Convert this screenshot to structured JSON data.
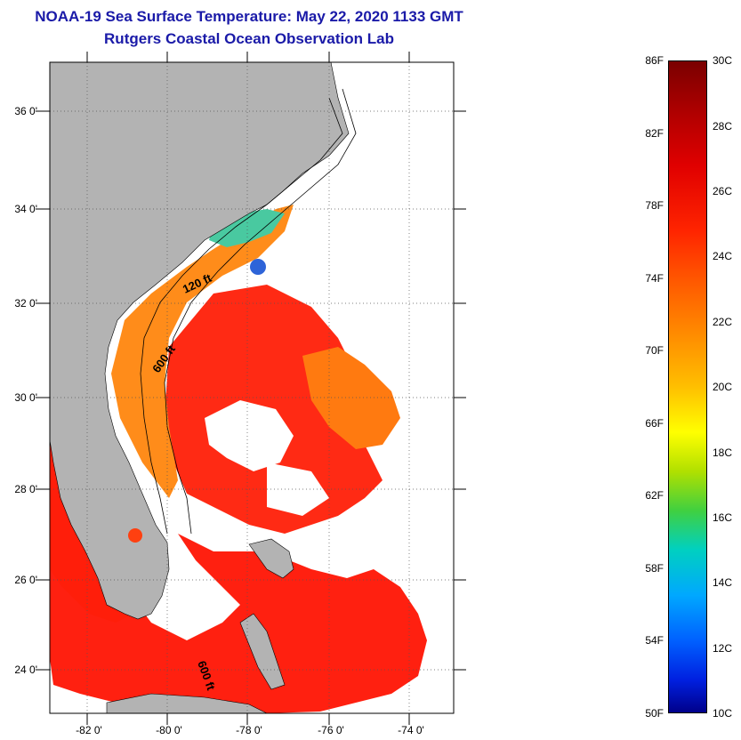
{
  "title": {
    "line1": "NOAA-19 Sea Surface Temperature:  May 22, 2020 1133 GMT",
    "line2": "Rutgers Coastal Ocean Observation Lab"
  },
  "map": {
    "lat_labels": [
      "36 0'",
      "34 0'",
      "32 0'",
      "30 0'",
      "28 0'",
      "26 0'",
      "24 0'"
    ],
    "lon_labels": [
      "-82 0'",
      "-80 0'",
      "-78 0'",
      "-76 0'",
      "-74 0'"
    ],
    "contours": [
      "120 ft",
      "600 ft",
      "600 ft"
    ],
    "colors": {
      "land": "#b3b3b3",
      "warm": "#ff2a00",
      "cool": "#ff8c1a",
      "cloud": "#ffffff"
    }
  },
  "colorbar": {
    "fahrenheit": [
      "86F",
      "82F",
      "78F",
      "74F",
      "70F",
      "66F",
      "62F",
      "58F",
      "54F",
      "50F"
    ],
    "celsius": [
      "30C",
      "28C",
      "26C",
      "24C",
      "22C",
      "20C",
      "18C",
      "16C",
      "14C",
      "12C",
      "10C"
    ]
  }
}
